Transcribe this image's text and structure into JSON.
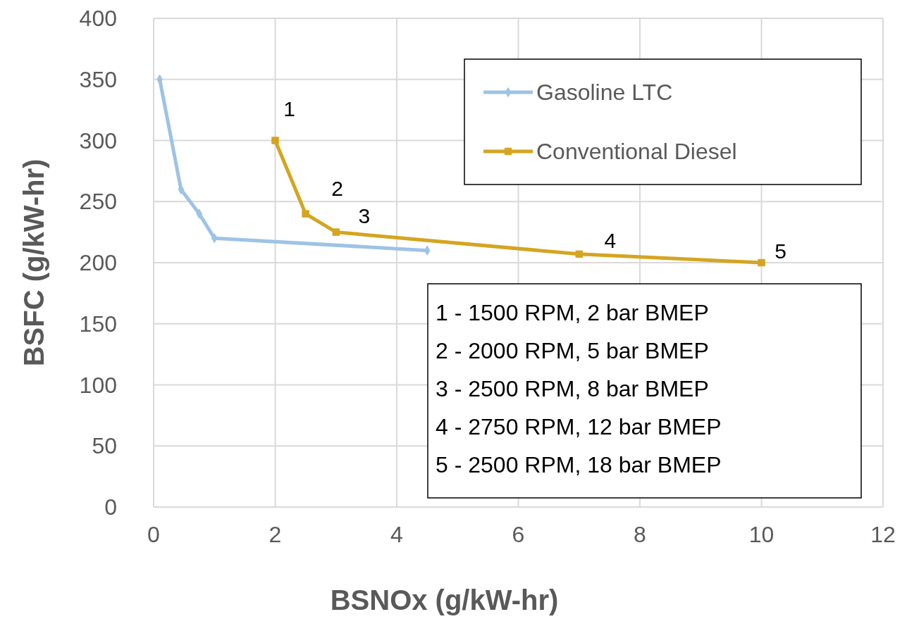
{
  "chart_data": {
    "type": "line",
    "xlabel": "BSNOx (g/kW-hr)",
    "ylabel": "BSFC (g/kW-hr)",
    "xlim": [
      0,
      12
    ],
    "xticks": [
      0,
      2,
      4,
      6,
      8,
      10,
      12
    ],
    "ylim": [
      0,
      400
    ],
    "yticks": [
      0,
      50,
      100,
      150,
      200,
      250,
      300,
      350,
      400
    ],
    "grid": true,
    "legend": "top right",
    "series": [
      {
        "name": "Gasoline LTC",
        "color": "#9dc3e6",
        "marker": "diamond",
        "x": [
          0.1,
          0.45,
          0.75,
          1,
          4.5
        ],
        "values": [
          350,
          260,
          240,
          220,
          210
        ]
      },
      {
        "name": "Conventional Diesel",
        "color": "#d4a520",
        "marker": "square",
        "x": [
          2,
          2.5,
          3,
          7,
          10
        ],
        "values": [
          300,
          240,
          225,
          207,
          200
        ]
      }
    ],
    "annotations": [
      {
        "text": "1",
        "x": 2,
        "y": 300
      },
      {
        "text": "2",
        "x": 2.5,
        "y": 240
      },
      {
        "text": "3",
        "x": 3,
        "y": 225
      },
      {
        "text": "4",
        "x": 7,
        "y": 207
      },
      {
        "text": "5",
        "x": 10,
        "y": 200
      },
      "1 - 1500 RPM, 2 bar BMEP",
      "2 - 2000 RPM, 5 bar BMEP",
      "3 - 2500 RPM, 8 bar BMEP",
      "4 - 2750 RPM, 12 bar BMEP",
      "5 - 2500 RPM, 18 bar BMEP"
    ]
  }
}
